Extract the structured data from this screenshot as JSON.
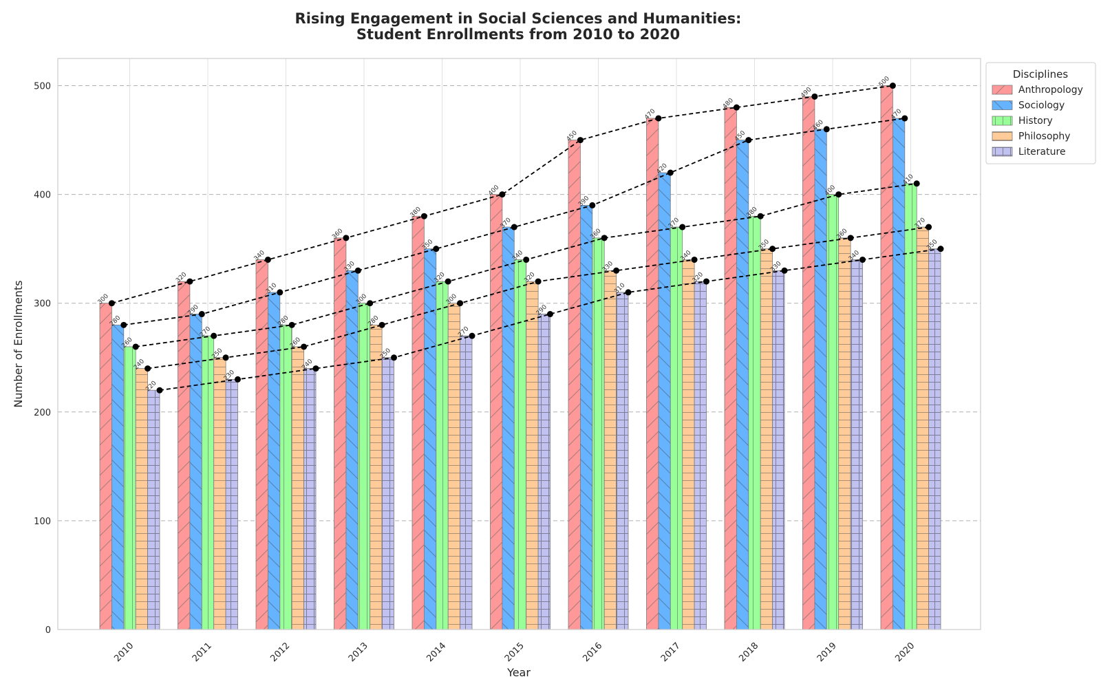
{
  "chart_data": {
    "type": "bar",
    "title_line1": "Rising Engagement in Social Sciences and Humanities:",
    "title_line2": "Student Enrollments from 2010 to 2020",
    "xlabel": "Year",
    "ylabel": "Number of Enrollments",
    "ylim": [
      0,
      525
    ],
    "yticks": [
      0,
      100,
      200,
      300,
      400,
      500
    ],
    "grid": true,
    "legend_title": "Disciplines",
    "legend_position": "top-right outside",
    "categories": [
      "2010",
      "2011",
      "2012",
      "2013",
      "2014",
      "2015",
      "2016",
      "2017",
      "2018",
      "2019",
      "2020"
    ],
    "series": [
      {
        "name": "Anthropology",
        "color": "#ff9999",
        "hatch": "diagonal",
        "values": [
          300,
          320,
          340,
          360,
          380,
          400,
          450,
          470,
          480,
          490,
          500
        ]
      },
      {
        "name": "Sociology",
        "color": "#66b3ff",
        "hatch": "back-diagonal",
        "values": [
          280,
          290,
          310,
          330,
          350,
          370,
          390,
          420,
          450,
          460,
          470
        ]
      },
      {
        "name": "History",
        "color": "#99ff99",
        "hatch": "vertical",
        "values": [
          260,
          270,
          280,
          300,
          320,
          340,
          360,
          370,
          380,
          400,
          410
        ]
      },
      {
        "name": "Philosophy",
        "color": "#ffcc99",
        "hatch": "horizontal",
        "values": [
          240,
          250,
          260,
          280,
          300,
          320,
          330,
          340,
          350,
          360,
          370
        ]
      },
      {
        "name": "Literature",
        "color": "#c2c2f0",
        "hatch": "grid",
        "values": [
          220,
          230,
          240,
          250,
          270,
          290,
          310,
          320,
          330,
          340,
          350
        ]
      }
    ],
    "trend_line_style": "black dashed with dot markers"
  }
}
